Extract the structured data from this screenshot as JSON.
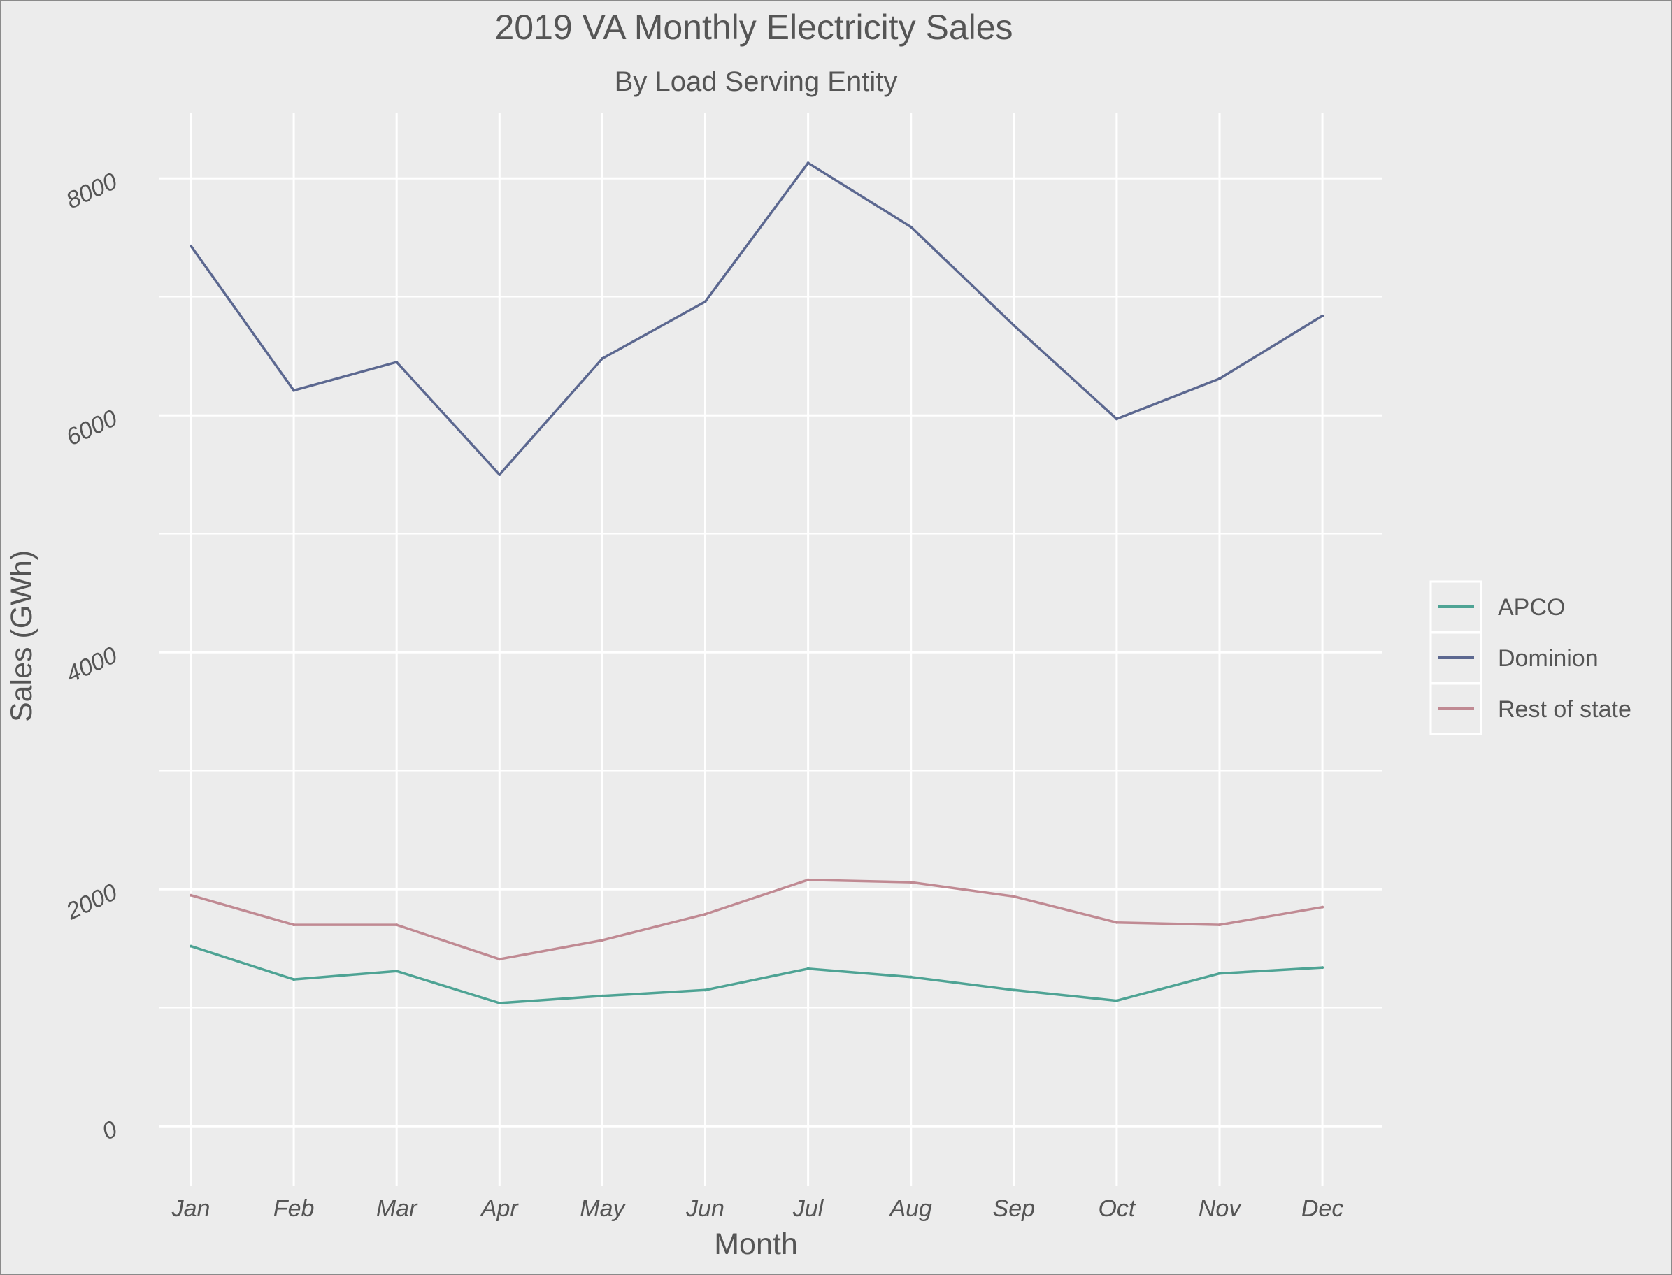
{
  "chart_data": {
    "type": "line",
    "title": "2019 VA Monthly Electricity Sales",
    "subtitle": "By Load Serving Entity",
    "xlabel": "Month",
    "ylabel": "Sales (GWh)",
    "categories": [
      "Jan",
      "Feb",
      "Mar",
      "Apr",
      "May",
      "Jun",
      "Jul",
      "Aug",
      "Sep",
      "Oct",
      "Nov",
      "Dec"
    ],
    "y_ticks": [
      0,
      2000,
      4000,
      6000,
      8000
    ],
    "ylim": [
      -500,
      8550
    ],
    "grid": true,
    "legend_position": "right",
    "series": [
      {
        "name": "APCO",
        "color": "#4ea394",
        "values": [
          1520,
          1240,
          1310,
          1040,
          1100,
          1150,
          1330,
          1260,
          1150,
          1060,
          1290,
          1340
        ]
      },
      {
        "name": "Dominion",
        "color": "#5c6890",
        "values": [
          7430,
          6210,
          6450,
          5500,
          6480,
          6960,
          8130,
          7590,
          6760,
          5970,
          6310,
          6840
        ]
      },
      {
        "name": "Rest of state",
        "color": "#c08a93",
        "values": [
          1950,
          1700,
          1700,
          1410,
          1570,
          1790,
          2080,
          2060,
          1940,
          1720,
          1700,
          1850
        ]
      }
    ]
  }
}
